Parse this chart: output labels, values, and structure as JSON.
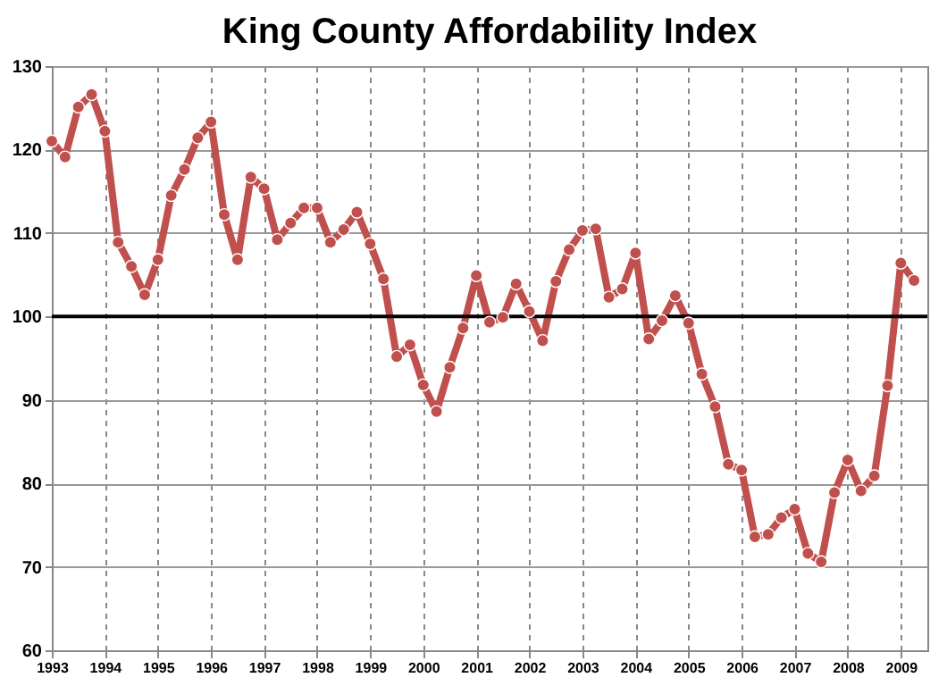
{
  "chart_data": {
    "type": "line",
    "title": "King County Affordability Index",
    "x": [
      1993,
      1993.25,
      1993.5,
      1993.75,
      1994,
      1994.25,
      1994.5,
      1994.75,
      1995,
      1995.25,
      1995.5,
      1995.75,
      1996,
      1996.25,
      1996.5,
      1996.75,
      1997,
      1997.25,
      1997.5,
      1997.75,
      1998,
      1998.25,
      1998.5,
      1998.75,
      1999,
      1999.25,
      1999.5,
      1999.75,
      2000,
      2000.25,
      2000.5,
      2000.75,
      2001,
      2001.25,
      2001.5,
      2001.75,
      2002,
      2002.25,
      2002.5,
      2002.75,
      2003,
      2003.25,
      2003.5,
      2003.75,
      2004,
      2004.25,
      2004.5,
      2004.75,
      2005,
      2005.25,
      2005.5,
      2005.75,
      2006,
      2006.25,
      2006.5,
      2006.75,
      2007,
      2007.25,
      2007.5,
      2007.75,
      2008,
      2008.25,
      2008.5,
      2008.75,
      2009,
      2009.25
    ],
    "series": [
      {
        "color": "#c0504d",
        "values": [
          121.0,
          119.1,
          125.1,
          126.6,
          122.2,
          108.9,
          106.0,
          102.6,
          106.8,
          114.5,
          117.6,
          121.4,
          123.3,
          112.2,
          106.8,
          116.7,
          115.3,
          109.2,
          111.2,
          113.0,
          113.0,
          108.9,
          110.4,
          112.5,
          108.7,
          104.5,
          95.2,
          96.6,
          91.8,
          88.6,
          93.9,
          98.6,
          104.9,
          99.3,
          99.9,
          103.9,
          100.6,
          97.1,
          104.2,
          108.0,
          110.3,
          110.5,
          102.3,
          103.3,
          107.6,
          97.3,
          99.5,
          102.5,
          99.2,
          93.1,
          89.2,
          82.3,
          81.6,
          73.6,
          73.9,
          75.9,
          76.9,
          71.6,
          70.6,
          78.9,
          82.8,
          79.1,
          80.9,
          91.7,
          106.4,
          104.3
        ]
      }
    ],
    "xlim": [
      1993,
      2009.5
    ],
    "xticks": [
      1993,
      1994,
      1995,
      1996,
      1997,
      1998,
      1999,
      2000,
      2001,
      2002,
      2003,
      2004,
      2005,
      2006,
      2007,
      2008,
      2009
    ],
    "ylim": [
      60,
      130
    ],
    "yticks": [
      60,
      70,
      80,
      90,
      100,
      110,
      120,
      130
    ],
    "ref_lines": [
      {
        "axis": "y",
        "value": 100,
        "color": "#000000"
      }
    ],
    "grid": true,
    "marker": "circle",
    "line_style": "solid"
  }
}
